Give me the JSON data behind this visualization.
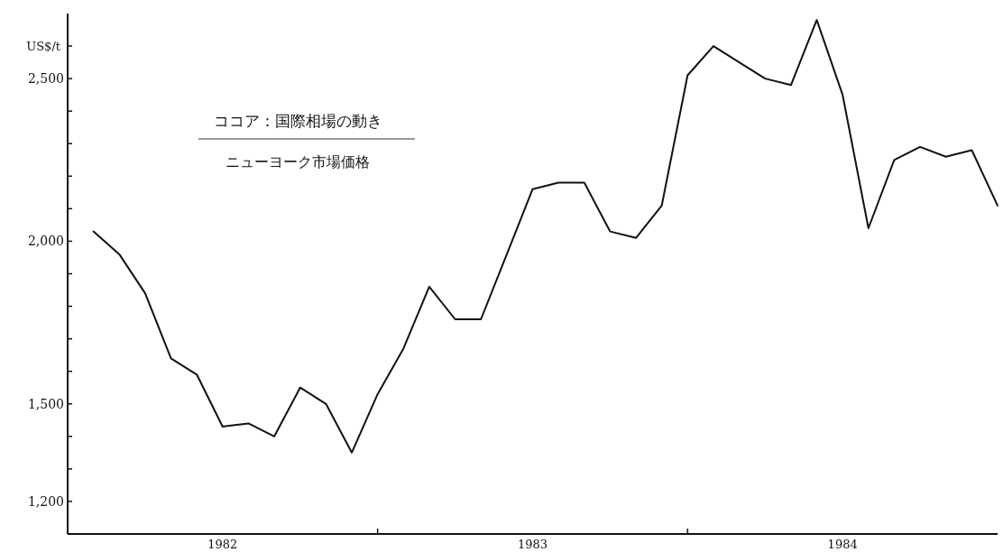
{
  "chart_data": {
    "type": "line",
    "title": "ココア：国際相場の動き",
    "subtitle": "ニューヨーク市場価格",
    "ylabel": "US$/t",
    "x": [
      "1982-02",
      "1982-03",
      "1982-04",
      "1982-05",
      "1982-06",
      "1982-07",
      "1982-08",
      "1982-09",
      "1982-10",
      "1982-11",
      "1982-12",
      "1983-01",
      "1983-02",
      "1983-03",
      "1983-04",
      "1983-05",
      "1983-06",
      "1983-07",
      "1983-08",
      "1983-09",
      "1983-10",
      "1983-11",
      "1983-12",
      "1984-01",
      "1984-02",
      "1984-03",
      "1984-04",
      "1984-05",
      "1984-06",
      "1984-07",
      "1984-08",
      "1984-09",
      "1984-10",
      "1984-11",
      "1984-12",
      "1985-01"
    ],
    "series": [
      {
        "color": "#111111",
        "values": [
          2030,
          1960,
          1840,
          1640,
          1590,
          1430,
          1440,
          1400,
          1550,
          1500,
          1350,
          1530,
          1670,
          1860,
          1760,
          1760,
          1960,
          2160,
          2180,
          2180,
          2030,
          2010,
          2110,
          2510,
          2600,
          2550,
          2500,
          2480,
          2680,
          2450,
          2040,
          2250,
          2290,
          2260,
          2280,
          2110
        ]
      }
    ],
    "xlim": [
      "1982-01",
      "1985-01"
    ],
    "xticks": [
      {
        "value": "1982-07",
        "label": "1982"
      },
      {
        "value": "1983-01",
        "label": null
      },
      {
        "value": "1983-07",
        "label": "1983"
      },
      {
        "value": "1984-01",
        "label": null
      },
      {
        "value": "1984-07",
        "label": "1984"
      }
    ],
    "ylim": [
      1100,
      2700
    ],
    "yticks": [
      {
        "value": 1200,
        "label": "1,200"
      },
      {
        "value": 1300,
        "label": null
      },
      {
        "value": 1400,
        "label": null
      },
      {
        "value": 1500,
        "label": "1,500"
      },
      {
        "value": 1600,
        "label": null
      },
      {
        "value": 1700,
        "label": null
      },
      {
        "value": 1800,
        "label": null
      },
      {
        "value": 1900,
        "label": null
      },
      {
        "value": 2000,
        "label": "2,000"
      },
      {
        "value": 2100,
        "label": null
      },
      {
        "value": 2200,
        "label": null
      },
      {
        "value": 2300,
        "label": null
      },
      {
        "value": 2400,
        "label": null
      },
      {
        "value": 2500,
        "label": "2,500"
      },
      {
        "value": 2600,
        "label": null
      }
    ],
    "grid": false,
    "marker": "none",
    "line_style": "solid"
  }
}
